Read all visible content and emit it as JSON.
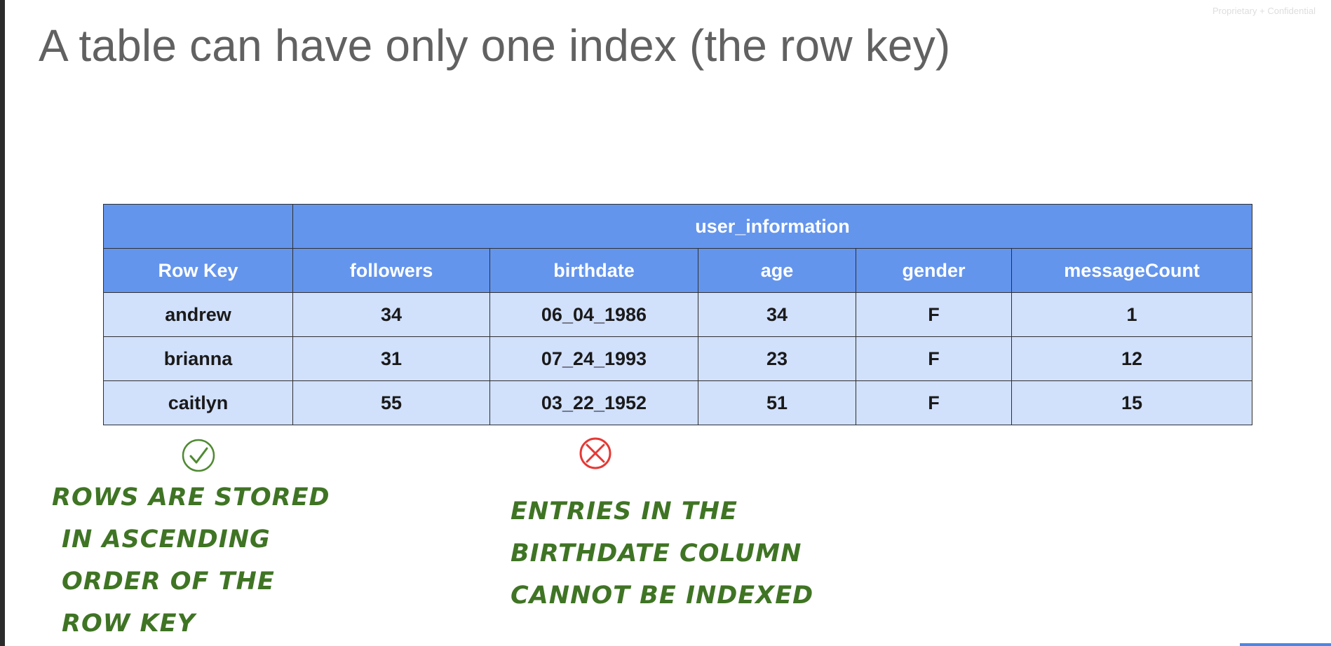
{
  "watermark": "Proprietary + Confidential",
  "title": "A table can have only one index (the row key)",
  "table": {
    "column_family": "user_information",
    "headers": [
      "Row Key",
      "followers",
      "birthdate",
      "age",
      "gender",
      "messageCount"
    ],
    "rows": [
      [
        "andrew",
        "34",
        "06_04_1986",
        "34",
        "F",
        "1"
      ],
      [
        "brianna",
        "31",
        "07_24_1993",
        "23",
        "F",
        "12"
      ],
      [
        "caitlyn",
        "55",
        "03_22_1952",
        "51",
        "F",
        "15"
      ]
    ]
  },
  "annotations": {
    "row_key_note": [
      "Rows are stored",
      "in ascending",
      "order of the",
      "row key"
    ],
    "birthdate_note": [
      "Entries in the",
      "birthdate column",
      "cannot be indexed"
    ]
  },
  "colors": {
    "header_blue": "#6495ed",
    "row_blue": "#d1e0fb",
    "annotation_green": "#3f7424",
    "cross_red": "#e53935",
    "check_green": "#3f7424"
  },
  "icons": {
    "row_key_mark": "check-circle-icon",
    "birthdate_mark": "cross-circle-icon"
  }
}
